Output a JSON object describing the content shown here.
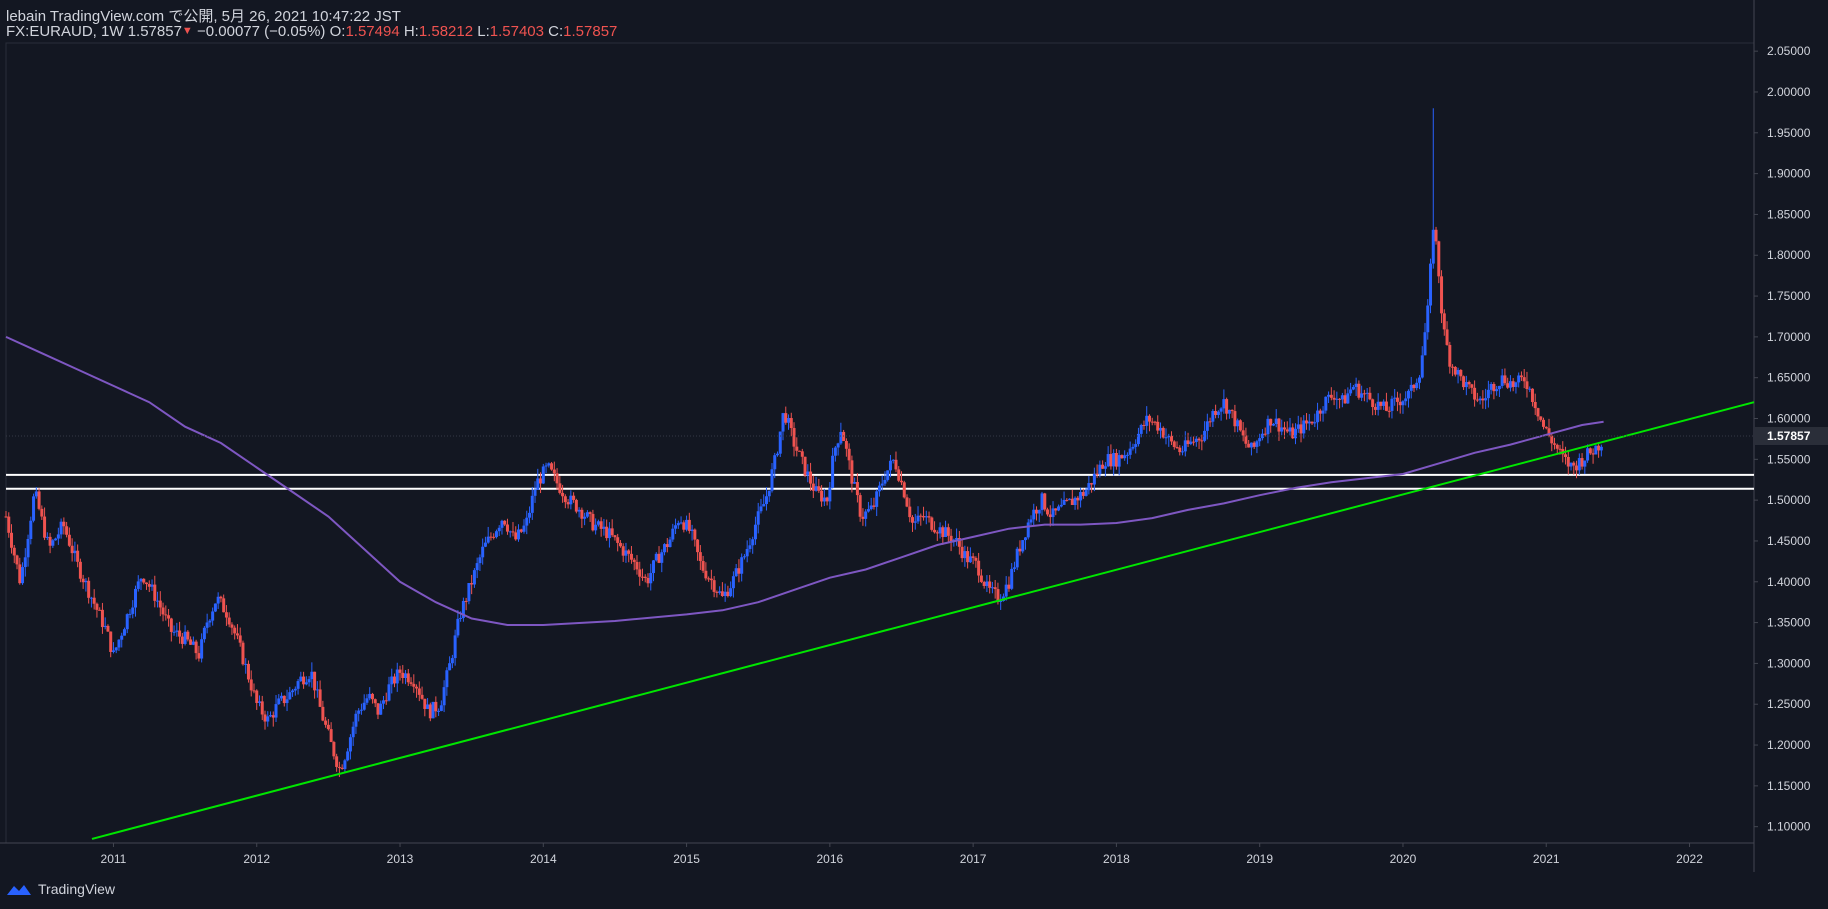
{
  "header": {
    "publish_line": "lebain TradingView.com で公開, 5月 26, 2021 10:47:22 JST",
    "symbol": "FX:EURAUD, 1W",
    "last": "1.57857",
    "change": "−0.00077 (−0.05%)",
    "open_label": "O:",
    "open": "1.57494",
    "high_label": "H:",
    "high": "1.58212",
    "low_label": "L:",
    "low": "1.57403",
    "close_label": "C:",
    "close": "1.57857"
  },
  "footer": {
    "brand": "TradingView",
    "icon": "tradingview-logo-icon"
  },
  "colors": {
    "background": "#131722",
    "up": "#2962ff",
    "down": "#ef5350",
    "ma": "#7e57c2",
    "trendline": "#00e600",
    "support": "#ffffff",
    "text": "#d1d4dc"
  },
  "chart_data": {
    "type": "candlestick",
    "symbol": "FX:EURAUD",
    "interval": "1W",
    "ylim": [
      1.08,
      2.06
    ],
    "yticks": [
      "2.05000",
      "2.00000",
      "1.95000",
      "1.90000",
      "1.85000",
      "1.80000",
      "1.75000",
      "1.70000",
      "1.65000",
      "1.60000",
      "1.55000",
      "1.50000",
      "1.45000",
      "1.40000",
      "1.35000",
      "1.30000",
      "1.25000",
      "1.20000",
      "1.15000",
      "1.10000"
    ],
    "xticks": [
      "2011",
      "2012",
      "2013",
      "2014",
      "2015",
      "2016",
      "2017",
      "2018",
      "2019",
      "2020",
      "2021",
      "2022"
    ],
    "xlim": [
      2010.25,
      2022.45
    ],
    "last_price_label": "1.57857",
    "price_path": [
      [
        2010.25,
        1.48
      ],
      [
        2010.35,
        1.4
      ],
      [
        2010.45,
        1.51
      ],
      [
        2010.55,
        1.44
      ],
      [
        2010.65,
        1.47
      ],
      [
        2010.75,
        1.42
      ],
      [
        2010.85,
        1.38
      ],
      [
        2010.95,
        1.34
      ],
      [
        2011.0,
        1.31
      ],
      [
        2011.1,
        1.36
      ],
      [
        2011.2,
        1.41
      ],
      [
        2011.3,
        1.38
      ],
      [
        2011.4,
        1.34
      ],
      [
        2011.5,
        1.33
      ],
      [
        2011.6,
        1.31
      ],
      [
        2011.65,
        1.35
      ],
      [
        2011.72,
        1.38
      ],
      [
        2011.8,
        1.36
      ],
      [
        2011.88,
        1.32
      ],
      [
        2011.95,
        1.28
      ],
      [
        2012.0,
        1.25
      ],
      [
        2012.08,
        1.23
      ],
      [
        2012.15,
        1.25
      ],
      [
        2012.22,
        1.26
      ],
      [
        2012.3,
        1.28
      ],
      [
        2012.38,
        1.29
      ],
      [
        2012.45,
        1.24
      ],
      [
        2012.52,
        1.2
      ],
      [
        2012.58,
        1.17
      ],
      [
        2012.62,
        1.19
      ],
      [
        2012.7,
        1.24
      ],
      [
        2012.78,
        1.26
      ],
      [
        2012.85,
        1.24
      ],
      [
        2012.92,
        1.27
      ],
      [
        2013.0,
        1.29
      ],
      [
        2013.1,
        1.28
      ],
      [
        2013.2,
        1.24
      ],
      [
        2013.28,
        1.25
      ],
      [
        2013.35,
        1.3
      ],
      [
        2013.42,
        1.36
      ],
      [
        2013.5,
        1.4
      ],
      [
        2013.58,
        1.44
      ],
      [
        2013.65,
        1.46
      ],
      [
        2013.72,
        1.48
      ],
      [
        2013.8,
        1.45
      ],
      [
        2013.88,
        1.47
      ],
      [
        2013.95,
        1.52
      ],
      [
        2014.03,
        1.54
      ],
      [
        2014.1,
        1.52
      ],
      [
        2014.18,
        1.5
      ],
      [
        2014.25,
        1.49
      ],
      [
        2014.35,
        1.47
      ],
      [
        2014.45,
        1.46
      ],
      [
        2014.55,
        1.44
      ],
      [
        2014.65,
        1.42
      ],
      [
        2014.72,
        1.4
      ],
      [
        2014.8,
        1.43
      ],
      [
        2014.88,
        1.45
      ],
      [
        2014.95,
        1.48
      ],
      [
        2015.03,
        1.46
      ],
      [
        2015.1,
        1.42
      ],
      [
        2015.18,
        1.4
      ],
      [
        2015.25,
        1.38
      ],
      [
        2015.32,
        1.4
      ],
      [
        2015.4,
        1.43
      ],
      [
        2015.48,
        1.47
      ],
      [
        2015.55,
        1.5
      ],
      [
        2015.62,
        1.55
      ],
      [
        2015.68,
        1.61
      ],
      [
        2015.75,
        1.57
      ],
      [
        2015.82,
        1.54
      ],
      [
        2015.9,
        1.51
      ],
      [
        2015.98,
        1.5
      ],
      [
        2016.03,
        1.56
      ],
      [
        2016.08,
        1.59
      ],
      [
        2016.15,
        1.53
      ],
      [
        2016.22,
        1.48
      ],
      [
        2016.3,
        1.49
      ],
      [
        2016.38,
        1.53
      ],
      [
        2016.45,
        1.55
      ],
      [
        2016.52,
        1.51
      ],
      [
        2016.58,
        1.47
      ],
      [
        2016.65,
        1.48
      ],
      [
        2016.72,
        1.47
      ],
      [
        2016.8,
        1.46
      ],
      [
        2016.88,
        1.45
      ],
      [
        2016.95,
        1.43
      ],
      [
        2017.03,
        1.42
      ],
      [
        2017.1,
        1.39
      ],
      [
        2017.18,
        1.38
      ],
      [
        2017.25,
        1.4
      ],
      [
        2017.32,
        1.44
      ],
      [
        2017.4,
        1.48
      ],
      [
        2017.48,
        1.5
      ],
      [
        2017.55,
        1.48
      ],
      [
        2017.62,
        1.49
      ],
      [
        2017.7,
        1.5
      ],
      [
        2017.78,
        1.51
      ],
      [
        2017.85,
        1.53
      ],
      [
        2017.92,
        1.55
      ],
      [
        2018.0,
        1.55
      ],
      [
        2018.08,
        1.56
      ],
      [
        2018.15,
        1.58
      ],
      [
        2018.22,
        1.6
      ],
      [
        2018.3,
        1.59
      ],
      [
        2018.38,
        1.57
      ],
      [
        2018.45,
        1.56
      ],
      [
        2018.52,
        1.57
      ],
      [
        2018.6,
        1.58
      ],
      [
        2018.68,
        1.61
      ],
      [
        2018.75,
        1.62
      ],
      [
        2018.82,
        1.6
      ],
      [
        2018.9,
        1.57
      ],
      [
        2018.95,
        1.56
      ],
      [
        2019.0,
        1.58
      ],
      [
        2019.08,
        1.6
      ],
      [
        2019.15,
        1.59
      ],
      [
        2019.22,
        1.58
      ],
      [
        2019.3,
        1.59
      ],
      [
        2019.38,
        1.6
      ],
      [
        2019.45,
        1.62
      ],
      [
        2019.52,
        1.63
      ],
      [
        2019.58,
        1.62
      ],
      [
        2019.65,
        1.64
      ],
      [
        2019.72,
        1.63
      ],
      [
        2019.8,
        1.62
      ],
      [
        2019.88,
        1.61
      ],
      [
        2019.95,
        1.62
      ],
      [
        2020.05,
        1.63
      ],
      [
        2020.12,
        1.66
      ],
      [
        2020.18,
        1.74
      ],
      [
        2020.21,
        1.84
      ],
      [
        2020.24,
        1.8
      ],
      [
        2020.28,
        1.71
      ],
      [
        2020.33,
        1.67
      ],
      [
        2020.4,
        1.65
      ],
      [
        2020.48,
        1.63
      ],
      [
        2020.55,
        1.62
      ],
      [
        2020.62,
        1.64
      ],
      [
        2020.7,
        1.65
      ],
      [
        2020.78,
        1.64
      ],
      [
        2020.85,
        1.65
      ],
      [
        2020.92,
        1.62
      ],
      [
        2020.98,
        1.59
      ],
      [
        2021.05,
        1.57
      ],
      [
        2021.12,
        1.55
      ],
      [
        2021.18,
        1.54
      ],
      [
        2021.25,
        1.55
      ],
      [
        2021.32,
        1.56
      ],
      [
        2021.38,
        1.57
      ],
      [
        2021.4,
        1.57857
      ]
    ],
    "spike_high": [
      2020.21,
      1.98
    ],
    "moving_average": [
      [
        2010.25,
        1.7
      ],
      [
        2010.5,
        1.68
      ],
      [
        2010.75,
        1.66
      ],
      [
        2011.0,
        1.64
      ],
      [
        2011.25,
        1.62
      ],
      [
        2011.5,
        1.59
      ],
      [
        2011.75,
        1.57
      ],
      [
        2012.0,
        1.54
      ],
      [
        2012.25,
        1.51
      ],
      [
        2012.5,
        1.48
      ],
      [
        2012.75,
        1.44
      ],
      [
        2013.0,
        1.4
      ],
      [
        2013.25,
        1.375
      ],
      [
        2013.5,
        1.355
      ],
      [
        2013.75,
        1.347
      ],
      [
        2014.0,
        1.347
      ],
      [
        2014.5,
        1.352
      ],
      [
        2015.0,
        1.36
      ],
      [
        2015.25,
        1.365
      ],
      [
        2015.5,
        1.375
      ],
      [
        2015.75,
        1.39
      ],
      [
        2016.0,
        1.405
      ],
      [
        2016.25,
        1.415
      ],
      [
        2016.5,
        1.43
      ],
      [
        2016.75,
        1.445
      ],
      [
        2017.0,
        1.455
      ],
      [
        2017.25,
        1.465
      ],
      [
        2017.5,
        1.47
      ],
      [
        2017.75,
        1.47
      ],
      [
        2018.0,
        1.472
      ],
      [
        2018.25,
        1.478
      ],
      [
        2018.5,
        1.488
      ],
      [
        2018.75,
        1.496
      ],
      [
        2019.0,
        1.506
      ],
      [
        2019.25,
        1.515
      ],
      [
        2019.5,
        1.522
      ],
      [
        2019.75,
        1.527
      ],
      [
        2020.0,
        1.532
      ],
      [
        2020.25,
        1.545
      ],
      [
        2020.5,
        1.558
      ],
      [
        2020.75,
        1.568
      ],
      [
        2021.0,
        1.58
      ],
      [
        2021.25,
        1.592
      ],
      [
        2021.4,
        1.596
      ]
    ],
    "trendline": [
      [
        2010.85,
        1.085
      ],
      [
        2022.45,
        1.62
      ]
    ],
    "support_lines": [
      1.531,
      1.514
    ]
  }
}
